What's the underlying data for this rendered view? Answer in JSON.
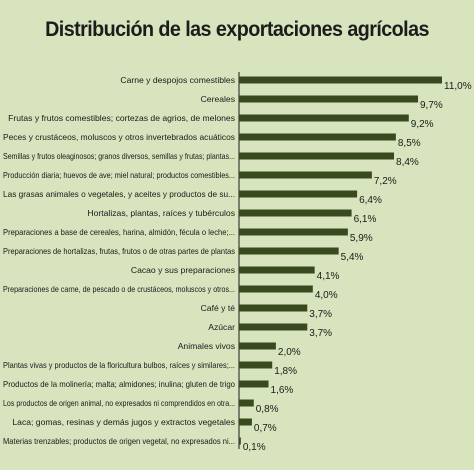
{
  "chart_data": {
    "type": "bar",
    "orientation": "horizontal",
    "title": "Distribución de las exportaciones agrícolas",
    "xlabel": "",
    "ylabel": "",
    "xlim": [
      0,
      11.0
    ],
    "grid": false,
    "legend": "none",
    "bar_color": "#3a4a1f",
    "background_color": "#d7e4bd",
    "categories": [
      "Carne y despojos comestibles",
      "Cereales",
      "Frutas y frutos comestibles; cortezas de agrios, de melones",
      "Peces y crustáceos, moluscos y otros invertebrados acuáticos",
      "Semillas y frutos oleaginosos; granos diversos, semillas y frutas; plantas...",
      "Producción diaria; huevos de ave; miel natural; productos comestibles...",
      "Las grasas animales o vegetales, y aceites y productos de su...",
      "Hortalizas, plantas, raíces y tubérculos",
      "Preparaciones a base de cereales, harina, almidón, fécula o leche;...",
      "Preparaciones de hortalizas, frutas, frutos o de otras partes de plantas",
      "Cacao y sus preparaciones",
      "Preparaciones de carne, de pescado o de crustáceos, moluscos y otros...",
      "Café y té",
      "Azúcar",
      "Animales vivos",
      "Plantas vivas y productos de la floricultura bulbos, raíces y similares;...",
      "Productos de la molinería; malta; almidones; inulina; gluten de trigo",
      "Los productos de origen animal, no expresados ni comprendidos en otra...",
      "Laca; gomas, resinas y demás jugos y extractos vegetales",
      "Materias trenzables; productos de origen vegetal, no expresados ni..."
    ],
    "values": [
      11.0,
      9.7,
      9.2,
      8.5,
      8.4,
      7.2,
      6.4,
      6.1,
      5.9,
      5.4,
      4.1,
      4.0,
      3.7,
      3.7,
      2.0,
      1.8,
      1.6,
      0.8,
      0.7,
      0.1
    ],
    "value_labels": [
      "11,0%",
      "9,7%",
      "9,2%",
      "8,5%",
      "8,4%",
      "7,2%",
      "6,4%",
      "6,1%",
      "5,9%",
      "5,4%",
      "4,1%",
      "4,0%",
      "3,7%",
      "3,7%",
      "2,0%",
      "1,8%",
      "1,6%",
      "0,8%",
      "0,7%",
      "0,1%"
    ]
  }
}
